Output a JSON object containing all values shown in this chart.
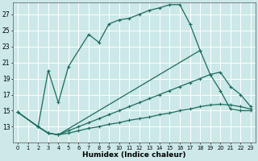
{
  "xlabel": "Humidex (Indice chaleur)",
  "bg_color": "#cce8e8",
  "grid_color": "#ffffff",
  "line_color": "#1a6b5a",
  "xlim": [
    -0.5,
    23.5
  ],
  "ylim": [
    11,
    28.5
  ],
  "xticks": [
    0,
    1,
    2,
    3,
    4,
    5,
    6,
    7,
    8,
    9,
    10,
    11,
    12,
    13,
    14,
    15,
    16,
    17,
    18,
    19,
    20,
    21,
    22,
    23
  ],
  "yticks": [
    13,
    15,
    17,
    19,
    21,
    23,
    25,
    27
  ],
  "line1_x": [
    2,
    3,
    4,
    5,
    7,
    8,
    9,
    10,
    11,
    12,
    13,
    14,
    15,
    16,
    17,
    18
  ],
  "line1_y": [
    13.0,
    20.0,
    16.0,
    20.5,
    24.5,
    23.5,
    25.8,
    26.3,
    26.5,
    27.0,
    27.5,
    27.8,
    28.2,
    28.2,
    25.8,
    22.5
  ],
  "line2_x": [
    0,
    2,
    3,
    4,
    18,
    19,
    20,
    21,
    22,
    23
  ],
  "line2_y": [
    14.8,
    13.0,
    12.2,
    12.0,
    22.5,
    19.5,
    17.5,
    15.2,
    15.0,
    15.0
  ],
  "line3_x": [
    0,
    2,
    3,
    4,
    5,
    6,
    7,
    8,
    9,
    10,
    11,
    12,
    13,
    14,
    15,
    16,
    17,
    18,
    19,
    20,
    21,
    22,
    23
  ],
  "line3_y": [
    14.8,
    13.0,
    12.2,
    12.0,
    12.2,
    12.5,
    12.8,
    13.0,
    13.3,
    13.5,
    13.8,
    14.0,
    14.2,
    14.5,
    14.7,
    15.0,
    15.2,
    15.5,
    15.7,
    15.8,
    15.7,
    15.5,
    15.2
  ],
  "line4_x": [
    0,
    2,
    3,
    4,
    5,
    6,
    7,
    8,
    9,
    10,
    11,
    12,
    13,
    14,
    15,
    16,
    17,
    18,
    19,
    20,
    21,
    22,
    23
  ],
  "line4_y": [
    14.8,
    13.0,
    12.2,
    12.0,
    12.5,
    13.0,
    13.5,
    14.0,
    14.5,
    15.0,
    15.5,
    16.0,
    16.5,
    17.0,
    17.5,
    18.0,
    18.5,
    19.0,
    19.5,
    19.8,
    18.0,
    17.0,
    15.5
  ]
}
